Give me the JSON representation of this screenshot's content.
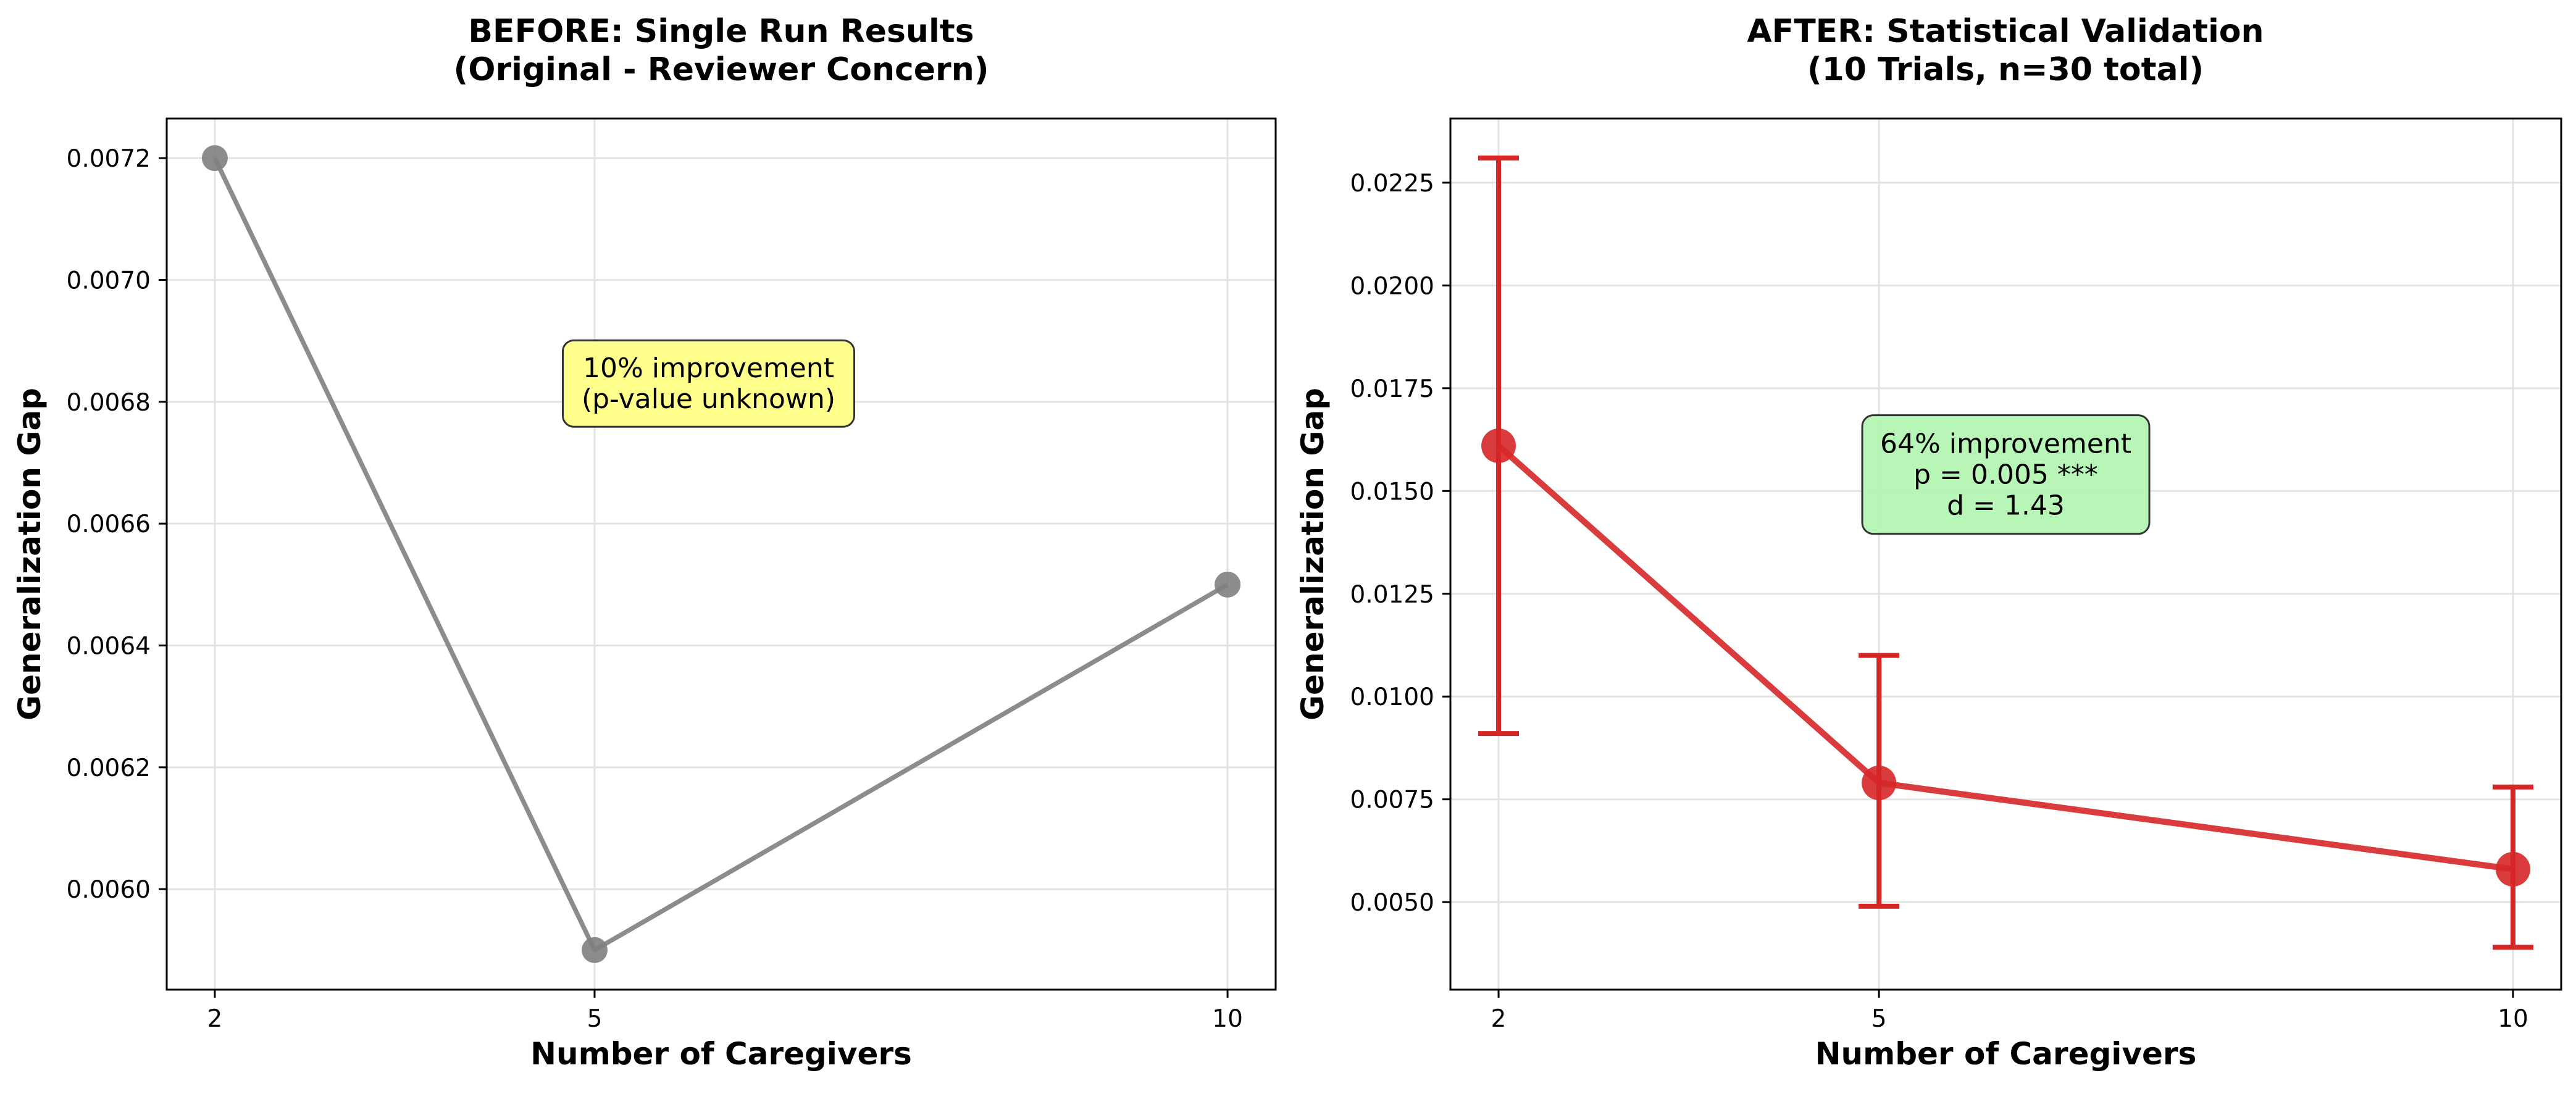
{
  "chart_data": [
    {
      "type": "line",
      "title_lines": [
        "BEFORE: Single Run Results",
        "(Original - Reviewer Concern)"
      ],
      "xlabel": "Number of Caregivers",
      "ylabel": "Generalization Gap",
      "x": [
        2,
        5,
        10
      ],
      "x_ticks": [
        "2",
        "5",
        "10"
      ],
      "y_ticks": [
        "0.0060",
        "0.0062",
        "0.0064",
        "0.0066",
        "0.0068",
        "0.0070",
        "0.0072"
      ],
      "ylim": [
        0.005835,
        0.007265
      ],
      "series": [
        {
          "values": [
            0.0072,
            0.0059,
            0.0065
          ],
          "color": "#808080"
        }
      ],
      "annotation": {
        "lines": [
          "10% improvement",
          "(p-value unknown)"
        ],
        "bg": "#ffff7f",
        "x": 5.9,
        "y": 0.00683
      },
      "grid": true
    },
    {
      "type": "line",
      "title_lines": [
        "AFTER: Statistical Validation",
        "(10 Trials, n=30 total)"
      ],
      "xlabel": "Number of Caregivers",
      "ylabel": "Generalization Gap",
      "x": [
        2,
        5,
        10
      ],
      "x_ticks": [
        "2",
        "5",
        "10"
      ],
      "y_ticks": [
        "0.0050",
        "0.0075",
        "0.0100",
        "0.0125",
        "0.0150",
        "0.0175",
        "0.0200",
        "0.0225"
      ],
      "ylim": [
        0.00287,
        0.02406
      ],
      "series": [
        {
          "values": [
            0.0161,
            0.0079,
            0.0058
          ],
          "error_low": [
            0.0091,
            0.0049,
            0.0039
          ],
          "error_high": [
            0.0231,
            0.011,
            0.0078
          ],
          "color": "#d62728"
        }
      ],
      "annotation": {
        "lines": [
          "64% improvement",
          "p = 0.005 ***",
          "d = 1.43"
        ],
        "bg": "#b0f5b0",
        "x": 6.0,
        "y": 0.0154
      },
      "grid": true
    }
  ]
}
